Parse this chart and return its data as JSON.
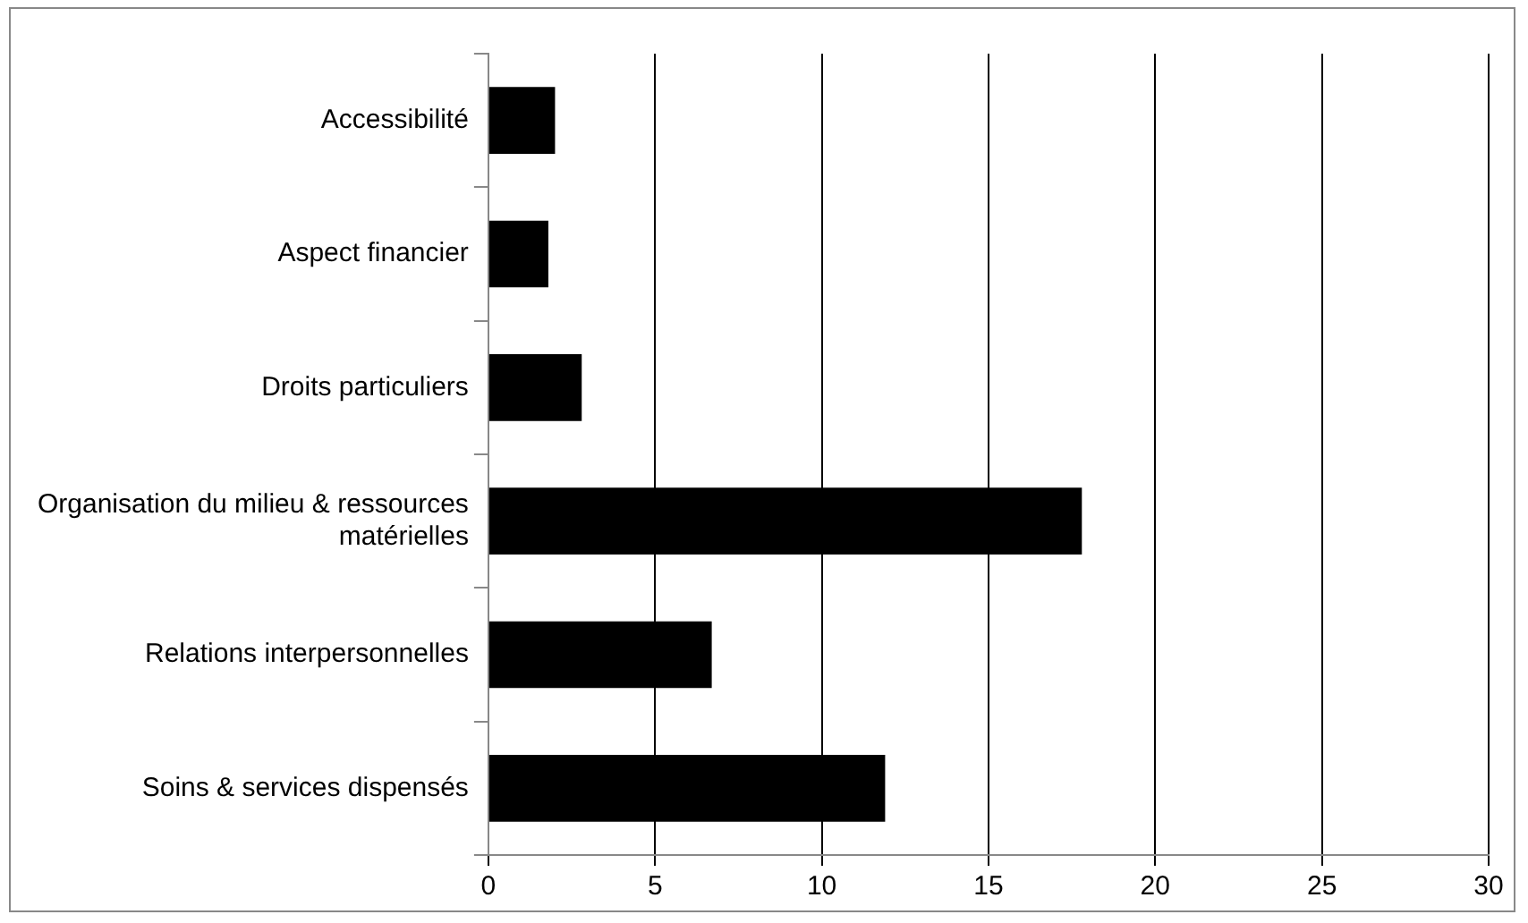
{
  "chart_data": {
    "type": "bar",
    "orientation": "horizontal",
    "categories": [
      "Accessibilité",
      "Aspect financier",
      "Droits particuliers",
      "Organisation du milieu & ressources matérielles",
      "Relations interpersonnelles",
      "Soins & services dispensés"
    ],
    "values": [
      2,
      1.8,
      2.8,
      17.8,
      6.7,
      11.9
    ],
    "color": "#000000",
    "xlim": [
      0,
      30
    ],
    "xticks": [
      0,
      5,
      10,
      15,
      20,
      25,
      30
    ],
    "grid": "x",
    "legend": false
  }
}
